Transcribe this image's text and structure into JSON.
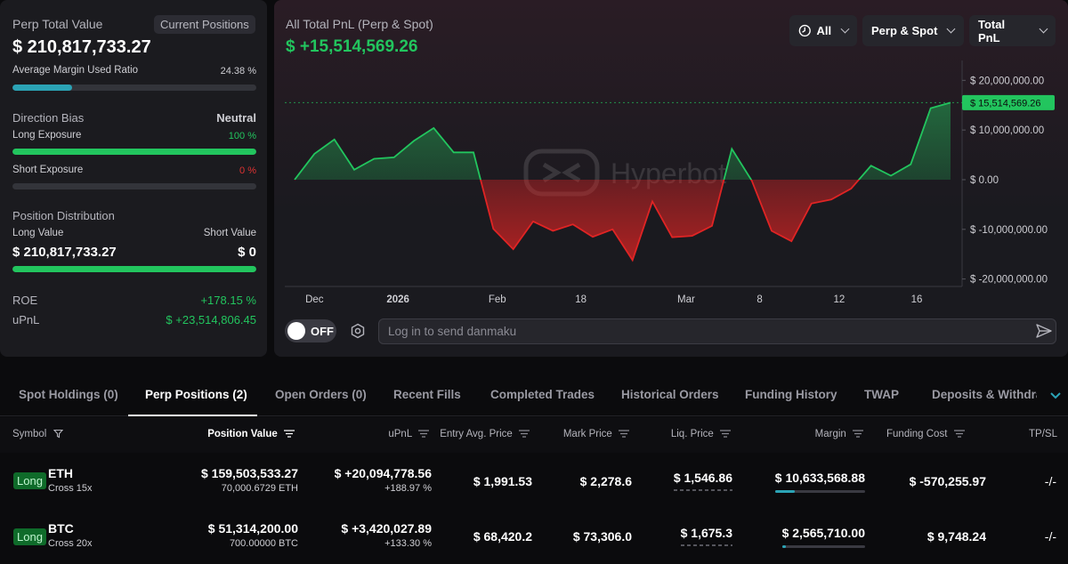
{
  "summary": {
    "perp_total_value_label": "Perp Total Value",
    "current_positions_button": "Current Positions",
    "perp_total_value": "$ 210,817,733.27",
    "avg_margin_label": "Average Margin Used Ratio",
    "avg_margin_value": "24.38 %",
    "avg_margin_ratio": 0.2438,
    "direction_bias_label": "Direction Bias",
    "direction_bias_value": "Neutral",
    "long_exposure_label": "Long Exposure",
    "long_exposure_value": "100 %",
    "long_exposure_ratio": 1.0,
    "short_exposure_label": "Short Exposure",
    "short_exposure_value": "0 %",
    "short_exposure_ratio": 0,
    "position_distribution_label": "Position Distribution",
    "long_value_label": "Long Value",
    "short_value_label": "Short Value",
    "long_value": "$ 210,817,733.27",
    "short_value": "$ 0",
    "distribution_long_ratio": 1.0,
    "roe_label": "ROE",
    "roe_value": "+178.15 %",
    "upnl_label": "uPnL",
    "upnl_value": "$ +23,514,806.45"
  },
  "chart_header": {
    "title": "All Total PnL (Perp & Spot)",
    "value": "$ +15,514,569.26",
    "filter_time": "All",
    "filter_type": "Perp & Spot",
    "filter_metric": "Total PnL",
    "watermark": "Hyperbot"
  },
  "chart_data": {
    "type": "area",
    "x_ticks": [
      "Dec",
      "2026",
      "Feb",
      "18",
      "Mar",
      "8",
      "12",
      "16"
    ],
    "y_ticks": [
      "$ 20,000,000.00",
      "$ 10,000,000.00",
      "$ 0.00",
      "$ -10,000,000.00",
      "$ -20,000,000.00"
    ],
    "ylim": [
      -21500000,
      24000000
    ],
    "current_value_label": "$ 15,514,569.26",
    "current_value": 15514569.26,
    "values": [
      0,
      5200000,
      8100000,
      2000000,
      4200000,
      4500000,
      7800000,
      10400000,
      5500000,
      5500000,
      -9900000,
      -14000000,
      -8400000,
      -10300000,
      -9000000,
      -11500000,
      -10000000,
      -16200000,
      -4400000,
      -11600000,
      -11300000,
      -9300000,
      6200000,
      -200000,
      -10300000,
      -12400000,
      -4800000,
      -4000000,
      -1800000,
      2800000,
      800000,
      3100000,
      14400000,
      15514569
    ],
    "positive_color": "#22c55e",
    "negative_color": "#e02424"
  },
  "danmaku": {
    "toggle_label": "OFF",
    "placeholder": "Log in to send danmaku"
  },
  "tabs": [
    {
      "label": "Spot Holdings (0)"
    },
    {
      "label": "Perp Positions (2)"
    },
    {
      "label": "Open Orders (0)"
    },
    {
      "label": "Recent Fills"
    },
    {
      "label": "Completed Trades"
    },
    {
      "label": "Historical Orders"
    },
    {
      "label": "Funding History"
    },
    {
      "label": "TWAP"
    },
    {
      "label": "Deposits & Withdraw"
    }
  ],
  "table": {
    "headers": [
      "Symbol",
      "Position Value",
      "uPnL",
      "Entry Avg. Price",
      "Mark Price",
      "Liq. Price",
      "Margin",
      "Funding Cost",
      "TP/SL"
    ],
    "rows": [
      {
        "side": "Long",
        "symbol": "ETH",
        "leverage": "Cross 15x",
        "position_value": "$ 159,503,533.27",
        "position_size": "70,000.6729 ETH",
        "upnl": "$ +20,094,778.56",
        "upnl_pct": "+188.97 %",
        "entry_price": "$ 1,991.53",
        "mark_price": "$ 2,278.6",
        "liq_price": "$ 1,546.86",
        "margin": "$ 10,633,568.88",
        "margin_ratio": 0.22,
        "funding_cost": "$ -570,255.97",
        "tpsl": "-/-"
      },
      {
        "side": "Long",
        "symbol": "BTC",
        "leverage": "Cross 20x",
        "position_value": "$ 51,314,200.00",
        "position_size": "700.00000 BTC",
        "upnl": "$ +3,420,027.89",
        "upnl_pct": "+133.30 %",
        "entry_price": "$ 68,420.2",
        "mark_price": "$ 73,306.0",
        "liq_price": "$ 1,675.3",
        "margin": "$ 2,565,710.00",
        "margin_ratio": 0.05,
        "funding_cost": "$ 9,748.24",
        "tpsl": "-/-"
      }
    ]
  }
}
